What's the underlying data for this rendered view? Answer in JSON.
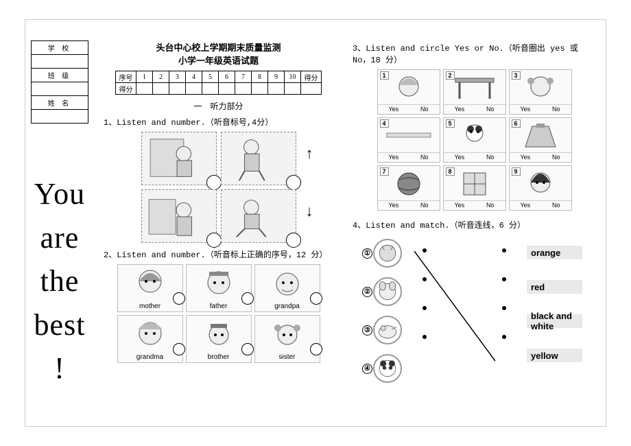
{
  "sidebar": {
    "fields": [
      "学 校",
      "班 级",
      "姓 名"
    ],
    "motivation": [
      "You",
      "are",
      "the",
      "best",
      "!"
    ]
  },
  "header": {
    "title1": "头台中心校上学期期末质量监测",
    "title2": "小学一年级英语试题",
    "score_row_label": "序号",
    "score_row2_label": "得分",
    "numbers": [
      "1",
      "2",
      "3",
      "4",
      "5",
      "6",
      "7",
      "8",
      "9",
      "10"
    ],
    "total_label": "得分"
  },
  "listening_heading": "一　听力部分",
  "q1": {
    "text": "1、Listen and number.（听音标号,4分）",
    "arrows": [
      "↑",
      "↓"
    ]
  },
  "q2": {
    "text": "2、Listen and number.（听音标上正确的序号，12 分）",
    "labels": [
      "mother",
      "father",
      "grandpa",
      "grandma",
      "brother",
      "sister"
    ]
  },
  "q3": {
    "text": "3、Listen and circle Yes or No.（听音圈出 yes 或 No，18 分）",
    "yes": "Yes",
    "no": "No",
    "count": 9
  },
  "q4": {
    "text": "4、Listen  and match.（听音连线，6 分）",
    "items": [
      "①",
      "②",
      "③",
      "④"
    ],
    "colors": [
      "orange",
      "red",
      "black and white",
      "yellow"
    ],
    "line_from": 0,
    "line_to": 3
  },
  "style": {
    "page_border": "#cccccc",
    "box_border": "#888888",
    "bg_gray": "#f3f3f3",
    "text": "#000000"
  }
}
